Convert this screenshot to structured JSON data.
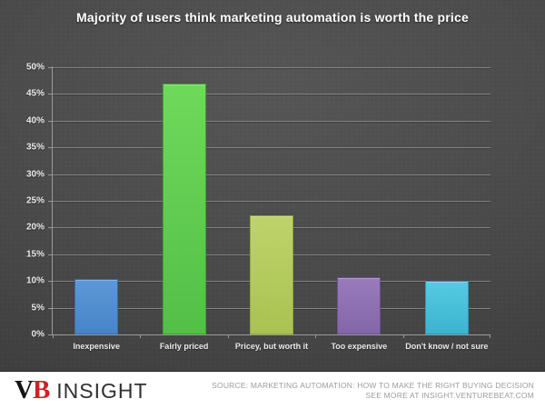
{
  "chart_data": {
    "type": "bar",
    "title": "Majority of users think marketing automation is worth the price",
    "categories": [
      "Inexpensive",
      "Fairly priced",
      "Pricey, but worth it",
      "Too expensive",
      "Don't know / not sure"
    ],
    "values": [
      10.3,
      47,
      22.3,
      10.7,
      10
    ],
    "unit": "%",
    "xlabel": "",
    "ylabel": "",
    "ylim": [
      0,
      50
    ],
    "ytick_step": 5,
    "ytick_labels": [
      "0%",
      "5%",
      "10%",
      "15%",
      "20%",
      "25%",
      "30%",
      "35%",
      "40%",
      "45%",
      "50%"
    ],
    "grid": true,
    "legend": false,
    "bar_colors": [
      {
        "name": "blue",
        "top": "#5d99d8",
        "bottom": "#4784c6",
        "border": "#3a6dac"
      },
      {
        "name": "green",
        "top": "#6ed95b",
        "bottom": "#54bf47",
        "border": "#3da32f"
      },
      {
        "name": "olive",
        "top": "#bfd36b",
        "bottom": "#a9c251",
        "border": "#8fa93c"
      },
      {
        "name": "purple",
        "top": "#9a7cbd",
        "bottom": "#8266a8",
        "border": "#6b5292"
      },
      {
        "name": "cyan",
        "top": "#55cbe2",
        "bottom": "#3cb4cf",
        "border": "#2d97b4"
      }
    ]
  },
  "colors": {
    "background_center": "#555555",
    "background_edge": "#353535",
    "gridline": "#848484",
    "axis": "#9a9a9a",
    "title_text": "#ffffff",
    "tick_label": "#eaeaea",
    "footer_bg": "#ffffff",
    "source_text": "#9b9b9b",
    "logo_b_red": "#cf2027"
  },
  "footer": {
    "logo_v": "V",
    "logo_b": "B",
    "logo_text": "INSIGHT",
    "source_line1": "SOURCE: MARKETING AUTOMATION: HOW TO MAKE THE RIGHT BUYING DECISION",
    "source_line2": "SEE MORE AT INSIGHT.VENTUREBEAT.COM"
  }
}
